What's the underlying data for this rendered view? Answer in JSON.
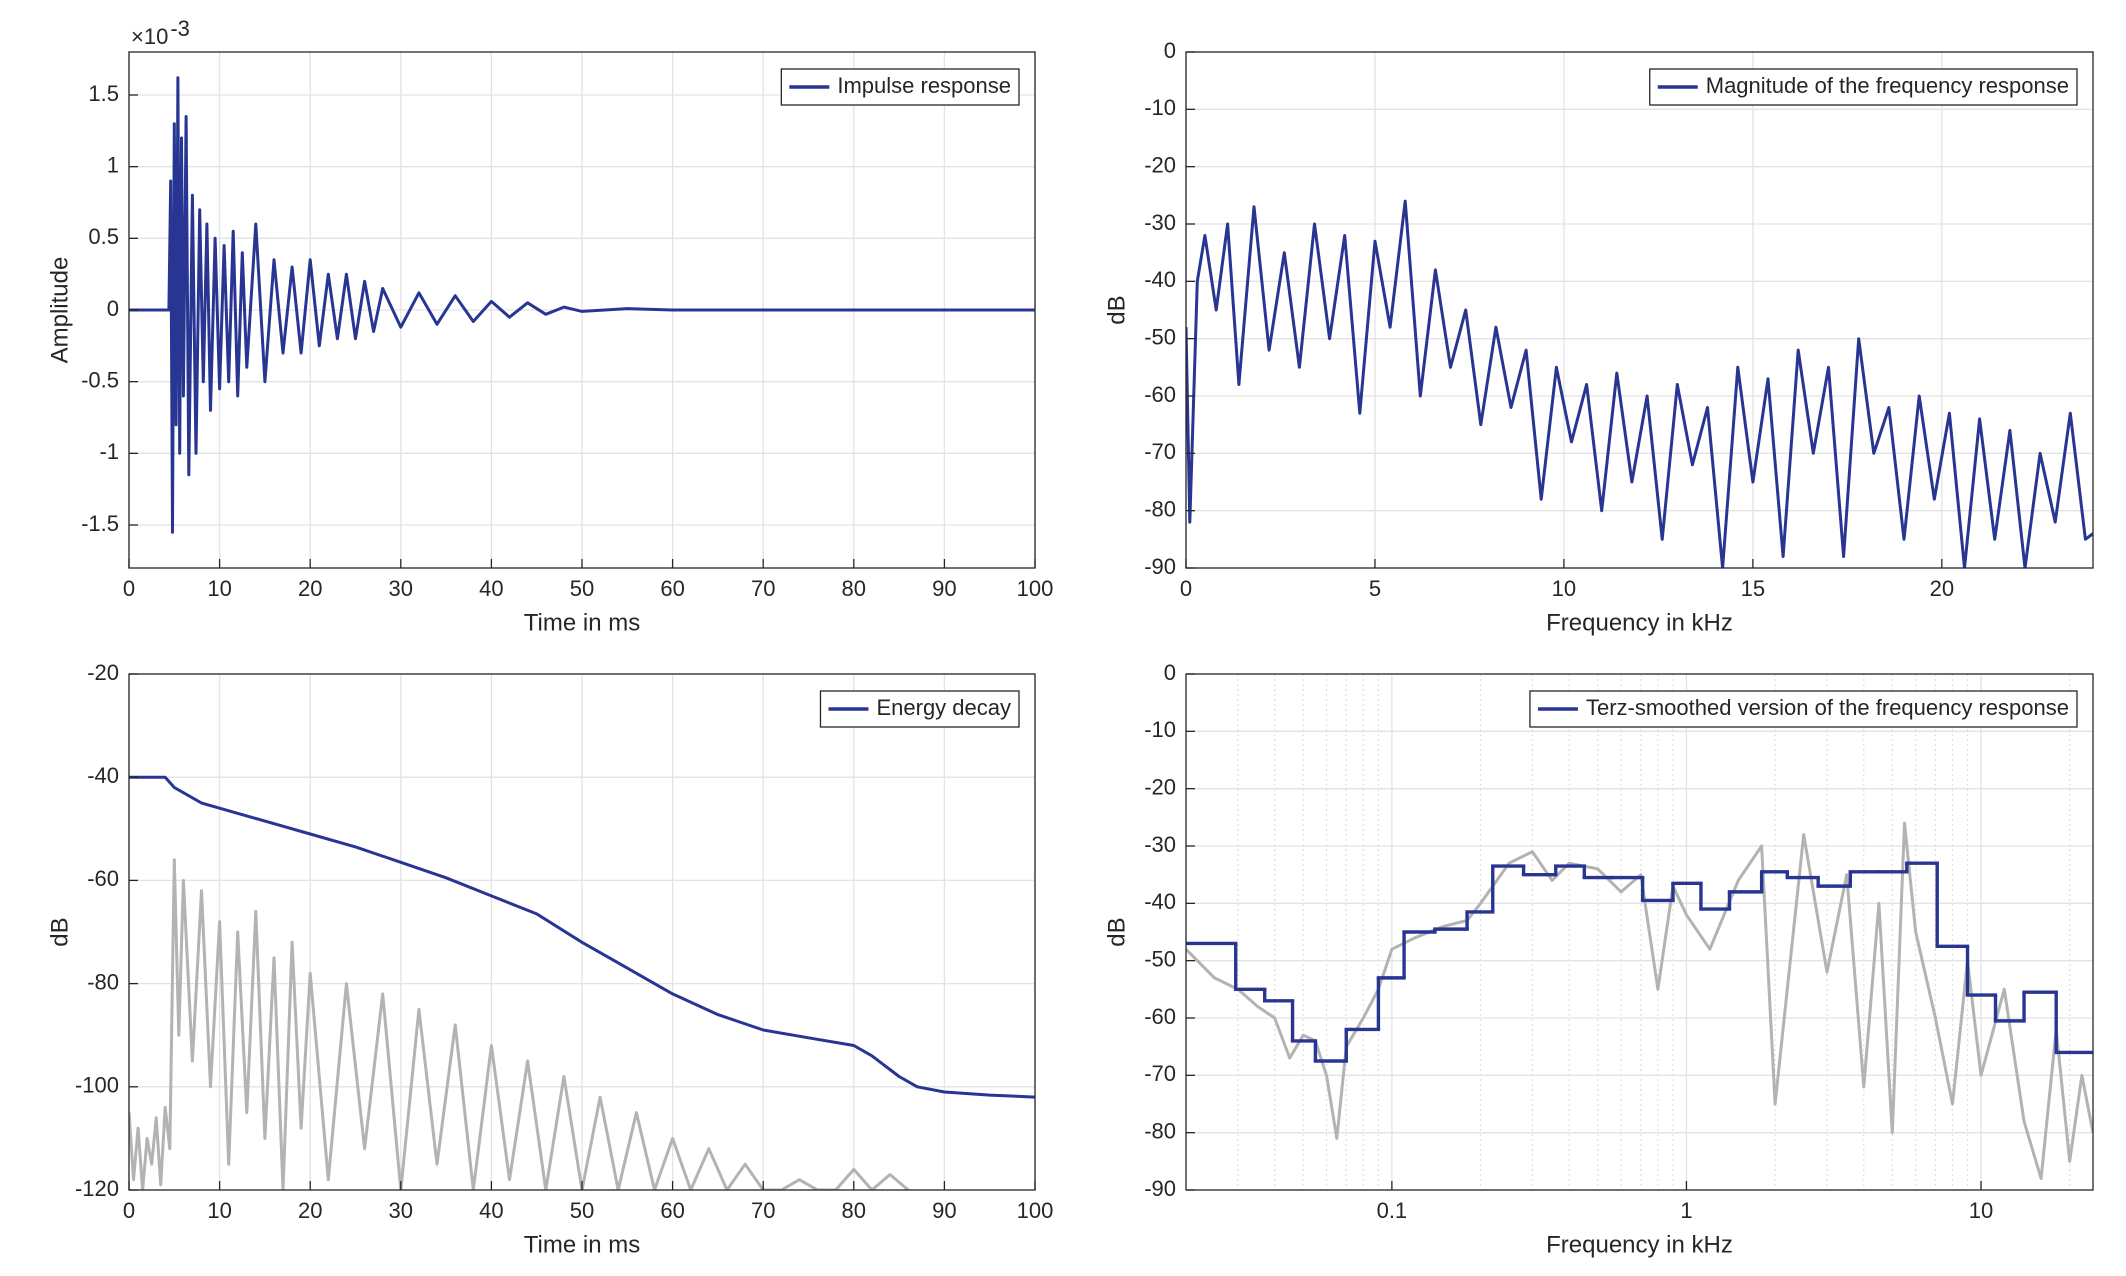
{
  "chart_data": [
    {
      "type": "line",
      "xlabel": "Time in ms",
      "ylabel": "Amplitude",
      "y_multiplier": {
        "base": "×10",
        "exponent": "-3"
      },
      "xlim": [
        0,
        100
      ],
      "xticks": [
        0,
        10,
        20,
        30,
        40,
        50,
        60,
        70,
        80,
        90,
        100
      ],
      "ylim": [
        -1.8,
        1.8
      ],
      "yticks": [
        -1.5,
        -1,
        -0.5,
        0,
        0.5,
        1,
        1.5
      ],
      "grid": true,
      "legend": "top-right",
      "series": [
        {
          "name": "Impulse response",
          "color": "#283593",
          "x": [
            0,
            4.4,
            4.6,
            4.8,
            5.0,
            5.2,
            5.4,
            5.6,
            5.8,
            6.0,
            6.3,
            6.6,
            7.0,
            7.4,
            7.8,
            8.2,
            8.6,
            9,
            9.5,
            10,
            10.5,
            11,
            11.5,
            12,
            12.5,
            13,
            14,
            15,
            16,
            17,
            18,
            19,
            20,
            21,
            22,
            23,
            24,
            25,
            26,
            27,
            28,
            30,
            32,
            34,
            36,
            38,
            40,
            42,
            44,
            46,
            48,
            50,
            55,
            60,
            100
          ],
          "values": [
            0,
            0,
            0.9,
            -1.55,
            1.3,
            -0.8,
            1.62,
            -1.0,
            1.2,
            -0.6,
            1.35,
            -1.15,
            0.8,
            -1.0,
            0.7,
            -0.5,
            0.6,
            -0.7,
            0.5,
            -0.55,
            0.45,
            -0.5,
            0.55,
            -0.6,
            0.4,
            -0.4,
            0.6,
            -0.5,
            0.35,
            -0.3,
            0.3,
            -0.3,
            0.35,
            -0.25,
            0.25,
            -0.2,
            0.25,
            -0.2,
            0.2,
            -0.15,
            0.15,
            -0.12,
            0.12,
            -0.1,
            0.1,
            -0.08,
            0.06,
            -0.05,
            0.05,
            -0.03,
            0.02,
            -0.01,
            0.01,
            0,
            0
          ]
        }
      ]
    },
    {
      "type": "line",
      "xlabel": "Frequency in kHz",
      "ylabel": "dB",
      "xlim": [
        0,
        24
      ],
      "xticks": [
        0,
        5,
        10,
        15,
        20
      ],
      "ylim": [
        -90,
        0
      ],
      "yticks": [
        -90,
        -80,
        -70,
        -60,
        -50,
        -40,
        -30,
        -20,
        -10,
        0
      ],
      "grid": true,
      "legend": "top-right",
      "series": [
        {
          "name": "Magnitude of the frequency response",
          "color": "#283593",
          "x": [
            0,
            0.1,
            0.3,
            0.5,
            0.8,
            1.1,
            1.4,
            1.8,
            2.2,
            2.6,
            3.0,
            3.4,
            3.8,
            4.2,
            4.6,
            5.0,
            5.4,
            5.8,
            6.2,
            6.6,
            7.0,
            7.4,
            7.8,
            8.2,
            8.6,
            9.0,
            9.4,
            9.8,
            10.2,
            10.6,
            11.0,
            11.4,
            11.8,
            12.2,
            12.6,
            13.0,
            13.4,
            13.8,
            14.2,
            14.6,
            15.0,
            15.4,
            15.8,
            16.2,
            16.6,
            17.0,
            17.4,
            17.8,
            18.2,
            18.6,
            19.0,
            19.4,
            19.8,
            20.2,
            20.6,
            21.0,
            21.4,
            21.8,
            22.2,
            22.6,
            23.0,
            23.4,
            23.8,
            24
          ],
          "values": [
            -48,
            -82,
            -40,
            -32,
            -45,
            -30,
            -58,
            -27,
            -52,
            -35,
            -55,
            -30,
            -50,
            -32,
            -63,
            -33,
            -48,
            -26,
            -60,
            -38,
            -55,
            -45,
            -65,
            -48,
            -62,
            -52,
            -78,
            -55,
            -68,
            -58,
            -80,
            -56,
            -75,
            -60,
            -85,
            -58,
            -72,
            -62,
            -90,
            -55,
            -75,
            -57,
            -88,
            -52,
            -70,
            -55,
            -88,
            -50,
            -70,
            -62,
            -85,
            -60,
            -78,
            -63,
            -90,
            -64,
            -85,
            -66,
            -90,
            -70,
            -82,
            -63,
            -85,
            -84
          ]
        }
      ]
    },
    {
      "type": "line",
      "xlabel": "Time in ms",
      "ylabel": "dB",
      "xlim": [
        0,
        100
      ],
      "xticks": [
        0,
        10,
        20,
        30,
        40,
        50,
        60,
        70,
        80,
        90,
        100
      ],
      "ylim": [
        -120,
        -20
      ],
      "yticks": [
        -120,
        -100,
        -80,
        -60,
        -40,
        -20
      ],
      "grid": true,
      "legend": "top-right",
      "series": [
        {
          "color": "#b3b3b3",
          "x": [
            0,
            0.5,
            1,
            1.5,
            2,
            2.5,
            3,
            3.5,
            4,
            4.5,
            5,
            5.5,
            6,
            7,
            8,
            9,
            10,
            11,
            12,
            13,
            14,
            15,
            16,
            17,
            18,
            19,
            20,
            22,
            24,
            26,
            28,
            30,
            32,
            34,
            36,
            38,
            40,
            42,
            44,
            46,
            48,
            50,
            52,
            54,
            56,
            58,
            60,
            62,
            64,
            66,
            68,
            70,
            72,
            74,
            76,
            78,
            80,
            82,
            84,
            86
          ],
          "values": [
            -105,
            -118,
            -108,
            -120,
            -110,
            -115,
            -106,
            -119,
            -104,
            -112,
            -56,
            -90,
            -60,
            -95,
            -62,
            -100,
            -68,
            -115,
            -70,
            -105,
            -66,
            -110,
            -75,
            -120,
            -72,
            -108,
            -78,
            -118,
            -80,
            -112,
            -82,
            -120,
            -85,
            -115,
            -88,
            -120,
            -92,
            -118,
            -95,
            -120,
            -98,
            -120,
            -102,
            -120,
            -105,
            -120,
            -110,
            -120,
            -112,
            -120,
            -115,
            -120,
            -120,
            -118,
            -120,
            -120,
            -116,
            -120,
            -117,
            -120
          ]
        },
        {
          "name": "Energy decay",
          "color": "#283593",
          "x": [
            0,
            4,
            5,
            6,
            8,
            10,
            15,
            20,
            25,
            30,
            35,
            40,
            45,
            50,
            55,
            60,
            65,
            70,
            75,
            80,
            82,
            85,
            87,
            90,
            95,
            100
          ],
          "values": [
            -40,
            -40,
            -42,
            -43,
            -45,
            -46,
            -48.5,
            -51,
            -53.5,
            -56.5,
            -59.5,
            -63,
            -66.5,
            -72,
            -77,
            -82,
            -86,
            -89,
            -90.5,
            -92,
            -94,
            -98,
            -100,
            -101,
            -101.6,
            -102
          ]
        }
      ]
    },
    {
      "type": "line",
      "xscale": "log",
      "xlabel": "Frequency in kHz",
      "ylabel": "dB",
      "xlim": [
        0.02,
        24
      ],
      "xticks": [
        {
          "value": 0.1,
          "label": "0.1"
        },
        1,
        10
      ],
      "xminorticks": [
        0.03,
        0.04,
        0.05,
        0.06,
        0.07,
        0.08,
        0.09,
        0.2,
        0.3,
        0.4,
        0.5,
        0.6,
        0.7,
        0.8,
        0.9,
        2,
        3,
        4,
        5,
        6,
        7,
        8,
        9,
        20
      ],
      "ylim": [
        -90,
        0
      ],
      "yticks": [
        -90,
        -80,
        -70,
        -60,
        -50,
        -40,
        -30,
        -20,
        -10,
        0
      ],
      "grid": true,
      "legend": "top-right",
      "series": [
        {
          "color": "#b3b3b3",
          "x": [
            0.02,
            0.025,
            0.03,
            0.035,
            0.04,
            0.045,
            0.05,
            0.055,
            0.06,
            0.065,
            0.07,
            0.08,
            0.09,
            0.1,
            0.12,
            0.15,
            0.18,
            0.2,
            0.25,
            0.3,
            0.35,
            0.4,
            0.5,
            0.6,
            0.7,
            0.8,
            0.9,
            1,
            1.2,
            1.5,
            1.8,
            2,
            2.5,
            3,
            3.5,
            4,
            4.5,
            5,
            5.5,
            6,
            7,
            8,
            9,
            10,
            12,
            14,
            16,
            18,
            20,
            22,
            24
          ],
          "values": [
            -48,
            -53,
            -55,
            -58,
            -60,
            -67,
            -63,
            -64,
            -70,
            -81,
            -65,
            -60,
            -55,
            -48,
            -46,
            -44,
            -43,
            -40,
            -33,
            -31,
            -36,
            -33,
            -34,
            -38,
            -35,
            -55,
            -37,
            -42,
            -48,
            -36,
            -30,
            -75,
            -28,
            -52,
            -35,
            -72,
            -40,
            -80,
            -26,
            -45,
            -60,
            -75,
            -50,
            -70,
            -55,
            -78,
            -88,
            -62,
            -85,
            -70,
            -80
          ]
        },
        {
          "name": "Terz-smoothed version of the frequency response",
          "color": "#283593",
          "bins": [
            0.02,
            0.0295,
            0.037,
            0.046,
            0.055,
            0.07,
            0.09,
            0.11,
            0.14,
            0.18,
            0.22,
            0.28,
            0.36,
            0.45,
            0.56,
            0.71,
            0.9,
            1.12,
            1.4,
            1.8,
            2.2,
            2.8,
            3.6,
            4.5,
            5.6,
            7.1,
            9,
            11.2,
            14,
            18,
            24
          ],
          "values": [
            -47,
            -55,
            -57,
            -64,
            -67.5,
            -62,
            -53,
            -45,
            -44.5,
            -41.5,
            -33.5,
            -35,
            -33.5,
            -35.5,
            -35.5,
            -39.5,
            -36.5,
            -41,
            -38,
            -34.5,
            -35.5,
            -37,
            -34.5,
            -34.5,
            -33,
            -47.5,
            -56,
            -60.5,
            -55.5,
            -66
          ]
        }
      ]
    }
  ]
}
